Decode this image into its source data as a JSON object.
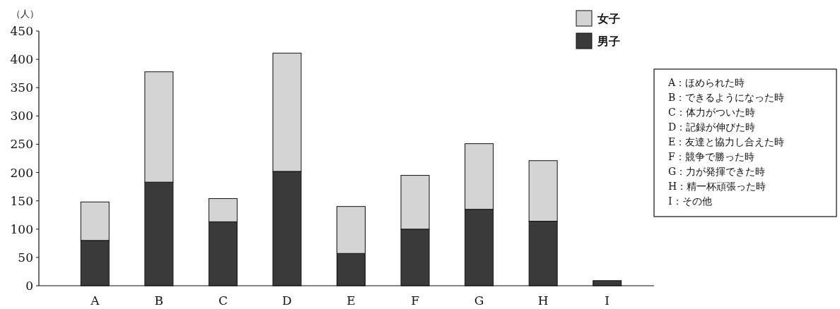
{
  "chart_data": {
    "type": "bar",
    "stacked": true,
    "ylabel": "（人）",
    "categories": [
      "A",
      "B",
      "C",
      "D",
      "E",
      "F",
      "G",
      "H",
      "I"
    ],
    "series": [
      {
        "name": "男子",
        "color": "#3a3a3a",
        "values": [
          80,
          183,
          113,
          202,
          57,
          100,
          135,
          114,
          9
        ]
      },
      {
        "name": "女子",
        "color": "#d4d4d4",
        "values": [
          68,
          195,
          41,
          209,
          83,
          95,
          116,
          107,
          0
        ]
      }
    ],
    "ylim": [
      0,
      450
    ],
    "yticks": [
      0,
      50,
      100,
      150,
      200,
      250,
      300,
      350,
      400,
      450
    ],
    "legend": "top right",
    "annotations": [
      "A：ほめられた時",
      "B：できるようになった時",
      "C：体力がついた時",
      "D：記録が伸びた時",
      "E：友達と協力し合えた時",
      "F：競争で勝った時",
      "G：力が発揮できた時",
      "H：精一杯頑張った時",
      "I：その他"
    ]
  }
}
